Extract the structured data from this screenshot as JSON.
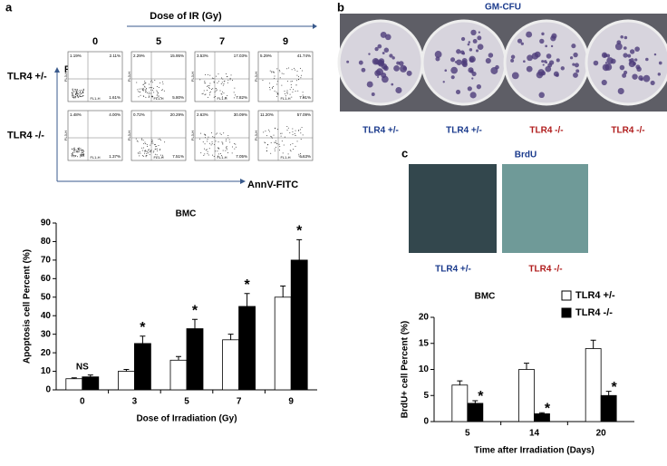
{
  "panel_labels": [
    "a",
    "b",
    "c"
  ],
  "flow": {
    "title": "Dose of IR (Gy)",
    "doses": [
      "0",
      "5",
      "7",
      "9"
    ],
    "rows": [
      "TLR4 +/-",
      "TLR4 -/-"
    ],
    "y_axis": "PI",
    "x_axis": "AnnV-FITC",
    "fl_x": "FL1-H",
    "fl_y": "FL3-H",
    "quadrants": [
      [
        [
          "1.19%",
          "2.11%",
          "1.61%"
        ],
        [
          "2.29%",
          "15.95%",
          "5.80%"
        ],
        [
          "3.53%",
          "17.03%",
          "7.82%"
        ],
        [
          "5.29%",
          "41.74%",
          "7.91%"
        ]
      ],
      [
        [
          "1.48%",
          "4.00%",
          "1.37%"
        ],
        [
          "0.72%",
          "20.29%",
          "7.51%"
        ],
        [
          "2.63%",
          "30.09%",
          "7.05%"
        ],
        [
          "11.20%",
          "57.09%",
          "4.63%"
        ]
      ]
    ]
  },
  "colonies": {
    "title": "GM-CFU",
    "labels": [
      "TLR4 +/-",
      "TLR4 +/-",
      "TLR4 -/-",
      "TLR4 -/-"
    ]
  },
  "brdu": {
    "title": "BrdU",
    "labels": [
      "TLR4 +/-",
      "TLR4 -/-"
    ]
  },
  "chart_data": [
    {
      "type": "bar",
      "title": "BMC",
      "x_label": "Dose of Irradiation (Gy)",
      "y_label": "Apoptosis cell Percent (%)",
      "categories": [
        "0",
        "3",
        "5",
        "7",
        "9"
      ],
      "series": [
        {
          "color": "#ffffff",
          "values": [
            6,
            10,
            16,
            27,
            50
          ],
          "errors": [
            0.5,
            1,
            2,
            3,
            6
          ]
        },
        {
          "color": "#000000",
          "values": [
            7,
            25,
            33,
            45,
            70
          ],
          "errors": [
            1,
            4,
            5,
            7,
            11
          ]
        }
      ],
      "annotations": [
        "NS",
        "*",
        "*",
        "*",
        "*"
      ],
      "ylim": [
        0,
        90
      ],
      "yticks": [
        0,
        10,
        20,
        30,
        40,
        50,
        60,
        70,
        80,
        90
      ]
    },
    {
      "type": "bar",
      "title": "BMC",
      "x_label": "Time after  Irradiation (Days)",
      "y_label": "BrdU+ cell Percent (%)",
      "categories": [
        "5",
        "14",
        "20"
      ],
      "series": [
        {
          "name": "TLR4 +/-",
          "color": "#ffffff",
          "values": [
            7,
            10,
            14
          ],
          "errors": [
            0.8,
            1.2,
            1.6
          ]
        },
        {
          "name": "TLR4 -/-",
          "color": "#000000",
          "values": [
            3.5,
            1.5,
            5
          ],
          "errors": [
            0.5,
            0.2,
            0.8
          ]
        }
      ],
      "annotations": [
        "*",
        "*",
        "*"
      ],
      "ylim": [
        0,
        20
      ],
      "yticks": [
        0,
        5,
        10,
        15,
        20
      ]
    }
  ]
}
